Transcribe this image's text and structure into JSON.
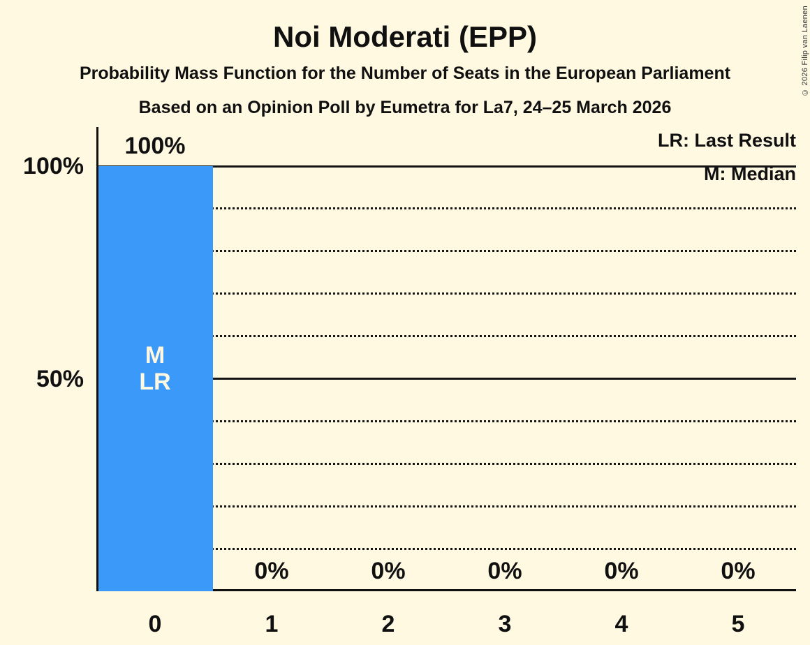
{
  "page": {
    "background_color": "#FFF9E2",
    "text_color": "#101010",
    "bar_text_color": "#FFF9E2"
  },
  "header": {
    "title": "Noi Moderati (EPP)",
    "subtitle1": "Probability Mass Function for the Number of Seats in the European Parliament",
    "subtitle2": "Based on an Opinion Poll by Eumetra for La7, 24–25 March 2026"
  },
  "copyright": "© 2026 Filip van Laenen",
  "legend": {
    "lr": "LR: Last Result",
    "m": "M: Median"
  },
  "y_axis": {
    "ticks": [
      {
        "value": 100,
        "label": "100%"
      },
      {
        "value": 50,
        "label": "50%"
      }
    ]
  },
  "chart_data": {
    "type": "bar",
    "title": "Noi Moderati (EPP)",
    "categories": [
      "0",
      "1",
      "2",
      "3",
      "4",
      "5"
    ],
    "values": [
      100,
      0,
      0,
      0,
      0,
      0
    ],
    "value_labels": [
      "100%",
      "0%",
      "0%",
      "0%",
      "0%",
      "0%"
    ],
    "ylim": [
      0,
      100
    ],
    "bar_color": "#3B99FA",
    "solid_gridlines_pct": [
      50,
      100
    ],
    "dotted_gridlines_pct": [
      10,
      20,
      30,
      40,
      60,
      70,
      80,
      90
    ],
    "median_category": "0",
    "last_result_category": "0",
    "bar_annotation_lines": [
      "M",
      "LR"
    ],
    "legend_position": "top-right",
    "grid": "horizontal-dotted"
  }
}
